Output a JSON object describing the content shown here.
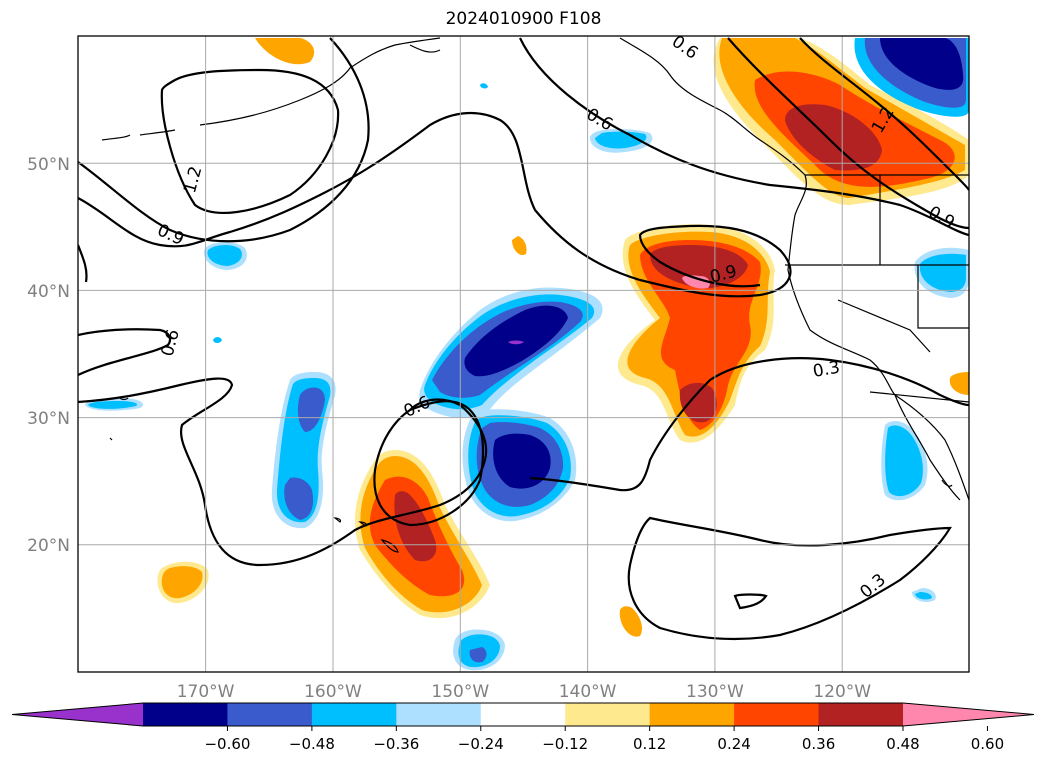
{
  "title": "2024010900 F108",
  "map": {
    "lat_labels": [
      "50°N",
      "40°N",
      "30°N",
      "20°N"
    ],
    "lon_labels": [
      "170°W",
      "160°W",
      "150°W",
      "140°W",
      "130°W",
      "120°W"
    ],
    "contour_labels": [
      "0.6",
      "0.6",
      "0.6",
      "0.6",
      "0.9",
      "0.9",
      "0.9",
      "1.2",
      "1.2",
      "0.3",
      "0.3"
    ],
    "grid": true
  },
  "colorbar": {
    "ticks": [
      "−0.60",
      "−0.48",
      "−0.36",
      "−0.24",
      "−0.12",
      "0.12",
      "0.24",
      "0.36",
      "0.48",
      "0.60"
    ],
    "colors": [
      "#9932cc",
      "#00008b",
      "#3a5bcb",
      "#00bfff",
      "#addfff",
      "#ffffff",
      "#ffe98f",
      "#ffa500",
      "#ff4500",
      "#b22222",
      "#ff86ac"
    ],
    "extend": "both"
  }
}
